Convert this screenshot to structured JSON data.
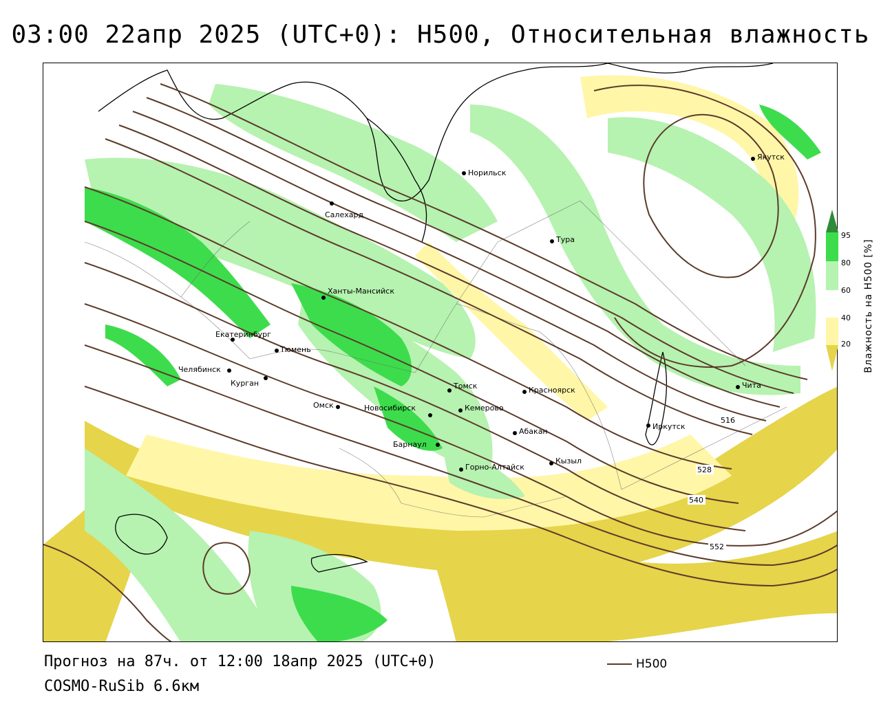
{
  "title": "03:00 22апр 2025 (UTC+0): H500, Относительная влажность",
  "footer": {
    "forecast": "Прогноз на 87ч. от 12:00 18апр 2025 (UTC+0)",
    "model": "COSMO-RuSib 6.6км"
  },
  "line_legend": {
    "label": "H500",
    "color": "#5c3a2a"
  },
  "humidity_legend": {
    "title": "Влажность на H500 [%]",
    "ticks": [
      "95",
      "80",
      "60",
      "40",
      "20"
    ],
    "colors": {
      "above_95": "#2e8b3a",
      "g80_95": "#3ddc4c",
      "g60_80": "#b6f2b0",
      "g40_60": "#ffffff",
      "g20_40": "#fff6a8",
      "below_20": "#e6d44a"
    }
  },
  "cities": [
    {
      "name": "Норильск"
    },
    {
      "name": "Якутск"
    },
    {
      "name": "Салехард"
    },
    {
      "name": "Тура"
    },
    {
      "name": "Ханты-Мансийск"
    },
    {
      "name": "Екатеринбург"
    },
    {
      "name": "Тюмень"
    },
    {
      "name": "Челябинск"
    },
    {
      "name": "Курган"
    },
    {
      "name": "Омск"
    },
    {
      "name": "Новосибирск"
    },
    {
      "name": "Томск"
    },
    {
      "name": "Кемерово"
    },
    {
      "name": "Красноярск"
    },
    {
      "name": "Абакан"
    },
    {
      "name": "Барнаул"
    },
    {
      "name": "Горно-Алтайск"
    },
    {
      "name": "Кызыл"
    },
    {
      "name": "Иркутск"
    },
    {
      "name": "Чита"
    }
  ],
  "contour_labels": [
    "516",
    "528",
    "540",
    "552"
  ]
}
